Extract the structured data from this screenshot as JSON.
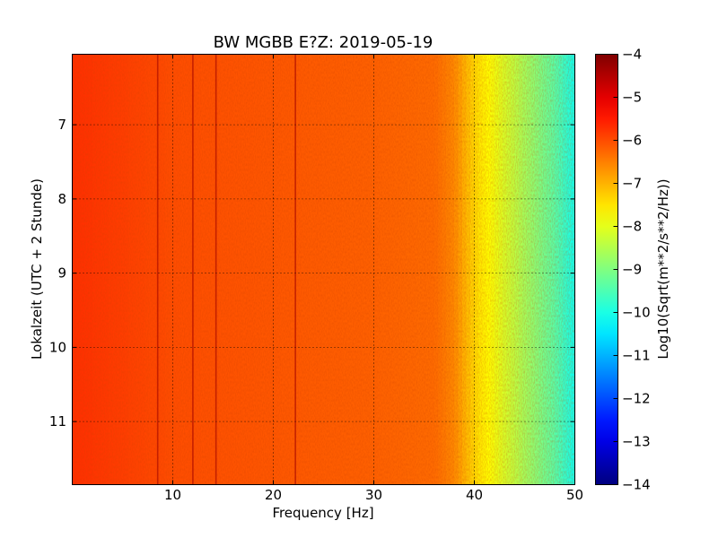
{
  "chart_data": {
    "type": "heatmap",
    "title": "BW MGBB E?Z: 2019-05-19",
    "xlabel": "Frequency [Hz]",
    "ylabel": "Lokalzeit (UTC + 2 Stunde)",
    "xlim": [
      0,
      50
    ],
    "ylim": [
      11.85,
      6.05
    ],
    "y_inverted": true,
    "x_ticks": [
      "10",
      "20",
      "30",
      "40",
      "50"
    ],
    "x_tick_values": [
      10,
      20,
      30,
      40,
      50
    ],
    "y_ticks": [
      "7",
      "8",
      "9",
      "10",
      "11"
    ],
    "y_tick_values": [
      7,
      8,
      9,
      10,
      11
    ],
    "grid": true,
    "grid_style": "dotted",
    "colormap": "jet",
    "colorbar": {
      "label": "Log10(Sqrt(m**2/s**2/Hz))",
      "range": [
        -14,
        -4
      ],
      "ticks": [
        "−4",
        "−5",
        "−6",
        "−7",
        "−8",
        "−9",
        "−10",
        "−11",
        "−12",
        "−13",
        "−14"
      ],
      "tick_values": [
        -4,
        -5,
        -6,
        -7,
        -8,
        -9,
        -10,
        -11,
        -12,
        -13,
        -14
      ]
    },
    "spectral_profile": {
      "frequency_hz": [
        0,
        10,
        20,
        30,
        36,
        38,
        40,
        42,
        44,
        46,
        48,
        50
      ],
      "value": [
        -5.7,
        -6.0,
        -6.1,
        -6.2,
        -6.3,
        -6.6,
        -7.4,
        -7.9,
        -8.4,
        -8.9,
        -9.4,
        -10.1
      ]
    },
    "spectral_lines_hz": [
      8.5,
      12.0,
      14.3,
      22.2
    ]
  }
}
